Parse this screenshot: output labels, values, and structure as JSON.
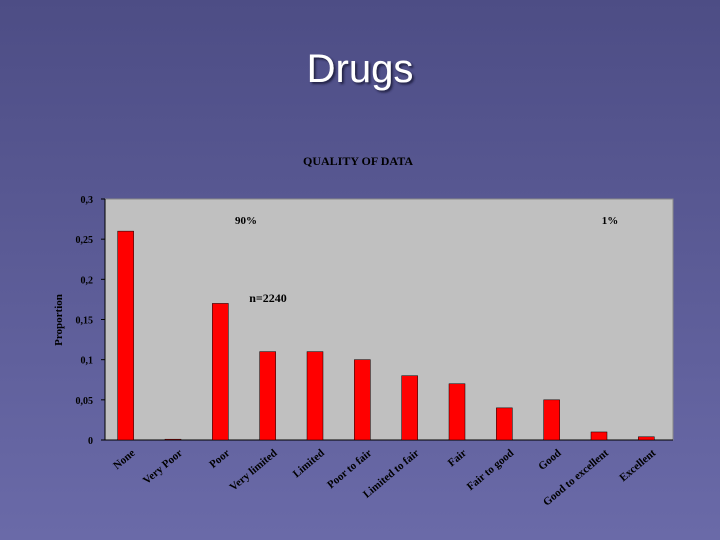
{
  "title": "Drugs",
  "chart_data": {
    "type": "bar",
    "title": "QUALITY OF DATA",
    "y_label": "Proportion",
    "categories": [
      "None",
      "Very Poor",
      "Poor",
      "Very limited",
      "Limited",
      "Poor to fair",
      "Limited to fair",
      "Fair",
      "Fair to good",
      "Good",
      "Good to excellent",
      "Excellent"
    ],
    "values": [
      0.26,
      0.001,
      0.17,
      0.11,
      0.11,
      0.1,
      0.08,
      0.07,
      0.04,
      0.05,
      0.01,
      0.004
    ],
    "color": "#ff0000",
    "ylim": [
      0,
      0.3
    ],
    "yticks": [
      0,
      {
        "value": 0.05,
        "label": "0,05"
      },
      {
        "value": 0.1,
        "label": "0,1"
      },
      {
        "value": 0.15,
        "label": "0,15"
      },
      {
        "value": 0.2,
        "label": "0,2"
      },
      {
        "value": 0.25,
        "label": "0,25"
      },
      {
        "value": 0.3,
        "label": "0,3"
      }
    ],
    "annotations": [
      "90%",
      "1%",
      "n=2240"
    ]
  }
}
